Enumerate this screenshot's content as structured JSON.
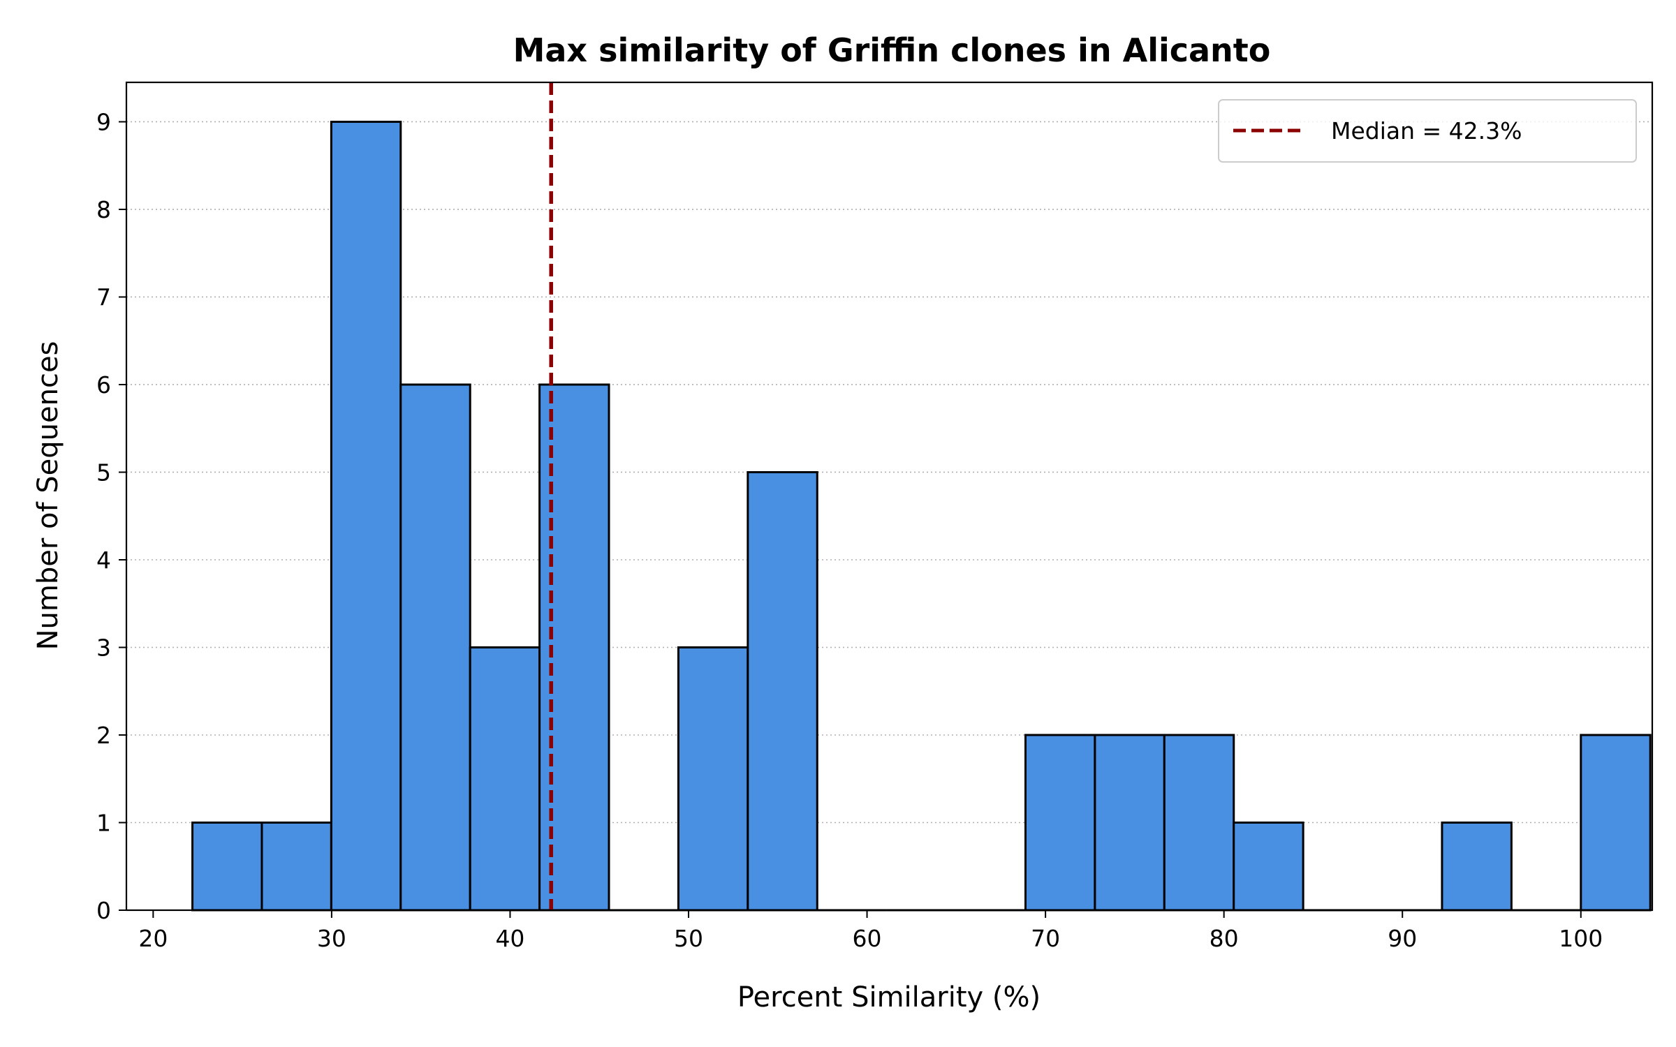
{
  "chart_data": {
    "type": "bar",
    "title": "Max similarity of Griffin clones in Alicanto",
    "xlabel": "Percent Similarity (%)",
    "ylabel": "Number of Sequences",
    "xlim": [
      18.5,
      104
    ],
    "ylim": [
      0,
      9.45
    ],
    "xticks": [
      20,
      30,
      40,
      50,
      60,
      70,
      80,
      90,
      100
    ],
    "yticks": [
      0,
      1,
      2,
      3,
      4,
      5,
      6,
      7,
      8,
      9
    ],
    "grid": "y-dotted",
    "bin_start": 22.2,
    "bin_width": 3.89,
    "bin_counts": [
      1,
      1,
      9,
      6,
      3,
      6,
      0,
      3,
      5,
      0,
      0,
      0,
      2,
      2,
      2,
      1,
      0,
      0,
      1,
      0,
      2
    ],
    "bar_color": "#4a90e2",
    "edge_color": "#000000",
    "median": 42.3,
    "median_color": "#8b0000",
    "legend": {
      "position": "top-right",
      "entries": [
        "Median = 42.3%"
      ]
    }
  }
}
